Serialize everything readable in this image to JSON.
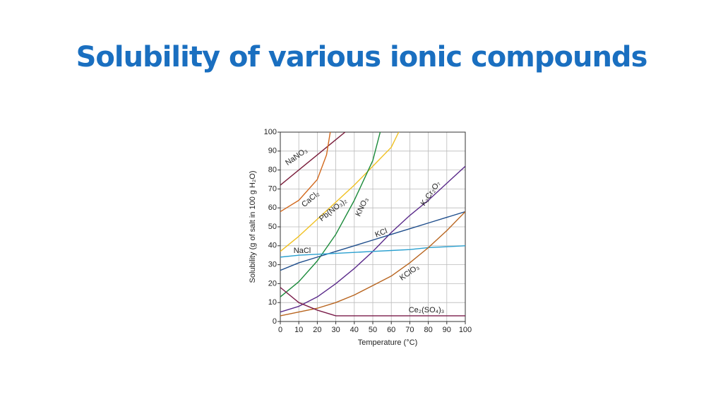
{
  "chart_data": {
    "type": "line",
    "title": "Solubility of various ionic compounds",
    "xlabel": "Temperature (°C)",
    "ylabel": "Solubility (g of salt in 100 g H₂O)",
    "xlim": [
      0,
      100
    ],
    "ylim": [
      0,
      100
    ],
    "xticks": [
      0,
      10,
      20,
      30,
      40,
      50,
      60,
      70,
      80,
      90,
      100
    ],
    "yticks": [
      0,
      10,
      20,
      30,
      40,
      50,
      60,
      70,
      80,
      90,
      100
    ],
    "grid": true,
    "series": [
      {
        "name": "NaNO₃",
        "color": "#7a1c3a",
        "x": [
          0,
          10,
          20,
          30,
          35
        ],
        "values": [
          72,
          80,
          88,
          96,
          100
        ]
      },
      {
        "name": "CaCl₂",
        "color": "#d2691e",
        "x": [
          0,
          10,
          20,
          25,
          27
        ],
        "values": [
          58,
          64,
          75,
          88,
          100
        ]
      },
      {
        "name": "Pb(NO₃)₂",
        "color": "#f0c020",
        "x": [
          0,
          10,
          20,
          30,
          40,
          50,
          60,
          64
        ],
        "values": [
          37,
          45,
          54,
          63,
          72,
          82,
          92,
          100
        ]
      },
      {
        "name": "KNO₃",
        "color": "#1a8a3a",
        "x": [
          0,
          10,
          20,
          30,
          40,
          50,
          54
        ],
        "values": [
          13,
          21,
          32,
          46,
          64,
          85,
          100
        ]
      },
      {
        "name": "K₂Cr₂O₇",
        "color": "#5a2a8a",
        "x": [
          0,
          10,
          20,
          30,
          40,
          50,
          60,
          70,
          80,
          90,
          100
        ],
        "values": [
          5,
          8,
          13,
          20,
          28,
          37,
          47,
          56,
          64,
          73,
          82
        ]
      },
      {
        "name": "KCl",
        "color": "#1f4e8c",
        "x": [
          0,
          10,
          20,
          30,
          40,
          50,
          60,
          70,
          80,
          90,
          100
        ],
        "values": [
          27,
          31,
          34,
          37,
          40,
          43,
          46,
          49,
          52,
          55,
          58
        ]
      },
      {
        "name": "NaCl",
        "color": "#2aa0d0",
        "x": [
          0,
          10,
          20,
          30,
          40,
          50,
          60,
          70,
          80,
          90,
          100
        ],
        "values": [
          34,
          35,
          35.5,
          36,
          36.5,
          37,
          37.5,
          38,
          39,
          39.5,
          40
        ]
      },
      {
        "name": "KClO₃",
        "color": "#b8641e",
        "x": [
          0,
          10,
          20,
          30,
          40,
          50,
          60,
          70,
          80,
          90,
          100
        ],
        "values": [
          3,
          5,
          7,
          10,
          14,
          19,
          24,
          31,
          39,
          48,
          58
        ]
      },
      {
        "name": "Ce₂(SO₄)₃",
        "color": "#7a1c4a",
        "x": [
          0,
          10,
          20,
          30,
          40,
          50,
          60,
          70,
          80,
          90,
          100
        ],
        "values": [
          18,
          10,
          6,
          3,
          3,
          3,
          3,
          3,
          3,
          3,
          3
        ]
      }
    ]
  }
}
